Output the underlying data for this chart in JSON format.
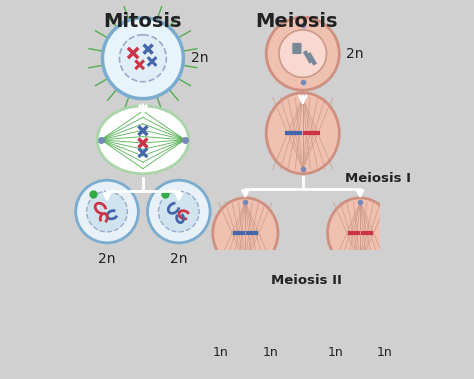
{
  "background_color": "#d0d0d0",
  "title_mitosis": "Mitosis",
  "title_meiosis": "Meiosis",
  "label_meiosis1": "Meiosis I",
  "label_meiosis2": "Meiosis II",
  "mitosis_cell_border": "#7aaccf",
  "mitosis_cell_fill": "#e8f4fc",
  "mitosis_spindle_fill": "#ffffff",
  "mitosis_spindle_border": "#aad4aa",
  "mitosis_final_fill": "#ddeeff",
  "mitosis_final_border": "#88aacc",
  "meiosis_cell_border": "#d09080",
  "meiosis_cell_fill": "#f0c0b0",
  "meiosis_inner_fill": "#f8d8d0",
  "meiosis_spindle_color": "#cc9988",
  "meiosis_final_fill": "#f8c8c0",
  "meiosis_final2_fill": "#fce0d8",
  "arrow_color": "#ffffff",
  "text_color": "#222222",
  "chr_red": "#cc3344",
  "chr_blue": "#4466aa",
  "chr_dark_blue": "#334488",
  "spindle_green": "#44aa44",
  "pole_dot_color": "#7788bb",
  "green_dot": "#33aa44"
}
